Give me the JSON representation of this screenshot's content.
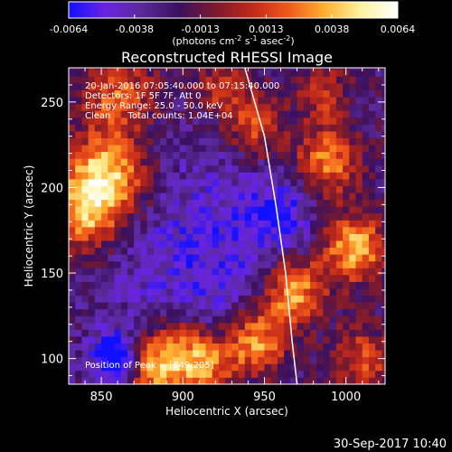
{
  "colorbar": {
    "tick_labels": [
      "-0.0064",
      "-0.0038",
      "-0.0013",
      "0.0013",
      "0.0038",
      "0.0064"
    ],
    "unit_parts": [
      "(photons cm",
      "-2",
      " s",
      "-1",
      " asec",
      "-2",
      ")"
    ],
    "range": [
      -0.0064,
      0.0064
    ]
  },
  "colors": {
    "colormap": [
      "#1010ff",
      "#6a24e0",
      "#5a2a9a",
      "#3a1060",
      "#7a1a2e",
      "#c0281a",
      "#f0581a",
      "#ffb030",
      "#fff3a0",
      "#ffffff"
    ],
    "limb": "#ffffff",
    "background": "#000000",
    "foreground": "#ffffff"
  },
  "chart_data": {
    "type": "heatmap",
    "title": "Reconstructed RHESSI Image",
    "xlabel": "Heliocentric X (arcsec)",
    "ylabel": "Heliocentric Y (arcsec)",
    "xlim": [
      830,
      1024
    ],
    "ylim": [
      85,
      270
    ],
    "xticks": [
      850,
      900,
      950,
      1000
    ],
    "yticks": [
      100,
      150,
      200,
      250
    ],
    "annotations": [
      "20-Jan-2016 07:05:40.000 to 07:15:40.000",
      "Detectors: 1F 5F 7F, Att 0",
      "Energy Range: 25.0 - 50.0 keV",
      "Clean      Total counts: 1.04E+04"
    ],
    "peak_label": "Position of Peak = [849,205]",
    "peak": [
      849,
      205
    ],
    "limb_curve": [
      [
        938,
        270
      ],
      [
        950,
        230
      ],
      [
        957,
        190
      ],
      [
        963,
        150
      ],
      [
        967,
        110
      ],
      [
        970,
        85
      ]
    ],
    "sources": [
      {
        "x": 852,
        "y": 205,
        "strength": 1.0,
        "radius": 18
      },
      {
        "x": 840,
        "y": 180,
        "strength": 0.55,
        "radius": 14
      },
      {
        "x": 860,
        "y": 255,
        "strength": 0.55,
        "radius": 16
      },
      {
        "x": 925,
        "y": 258,
        "strength": 0.45,
        "radius": 12
      },
      {
        "x": 945,
        "y": 235,
        "strength": 0.55,
        "radius": 12
      },
      {
        "x": 988,
        "y": 215,
        "strength": 0.7,
        "radius": 14
      },
      {
        "x": 1005,
        "y": 165,
        "strength": 0.85,
        "radius": 14
      },
      {
        "x": 968,
        "y": 140,
        "strength": 0.85,
        "radius": 14
      },
      {
        "x": 945,
        "y": 110,
        "strength": 0.8,
        "radius": 14
      },
      {
        "x": 898,
        "y": 105,
        "strength": 0.6,
        "radius": 14
      },
      {
        "x": 880,
        "y": 95,
        "strength": 0.7,
        "radius": 12
      },
      {
        "x": 915,
        "y": 95,
        "strength": 0.6,
        "radius": 12
      },
      {
        "x": 1010,
        "y": 100,
        "strength": 0.5,
        "radius": 14
      },
      {
        "x": 985,
        "y": 255,
        "strength": 0.4,
        "radius": 12
      }
    ],
    "negative_regions": [
      {
        "x": 915,
        "y": 160,
        "strength": 0.35,
        "radius": 45
      },
      {
        "x": 860,
        "y": 100,
        "strength": 0.8,
        "radius": 10
      },
      {
        "x": 960,
        "y": 185,
        "strength": 0.3,
        "radius": 15
      }
    ]
  },
  "footer": {
    "timestamp": "30-Sep-2017 10:40"
  }
}
